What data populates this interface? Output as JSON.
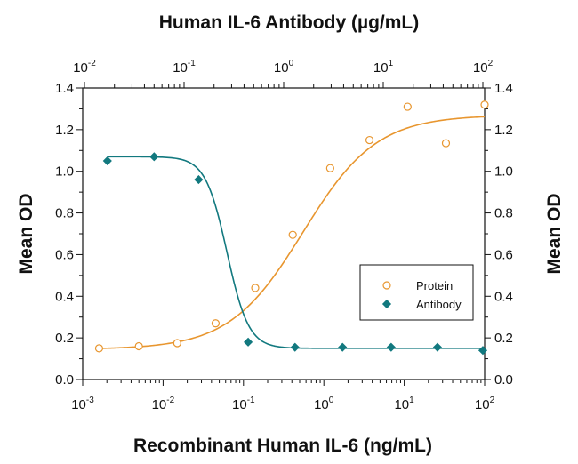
{
  "chart_data": {
    "type": "scatter",
    "title": "Human IL-6 Antibody (µg/mL)",
    "xlabel": "Recombinant Human IL-6 (ng/mL)",
    "ylabel": "Mean OD",
    "ylabel_right": "Mean OD",
    "x_scale": "log",
    "xlim": [
      0.001,
      100
    ],
    "ylim": [
      0,
      1.4
    ],
    "x_ticks": [
      {
        "value": 0.001,
        "base": "10",
        "exp": "-3"
      },
      {
        "value": 0.01,
        "base": "10",
        "exp": "-2"
      },
      {
        "value": 0.1,
        "base": "10",
        "exp": "-1"
      },
      {
        "value": 1,
        "base": "10",
        "exp": "0"
      },
      {
        "value": 10,
        "base": "10",
        "exp": "1"
      },
      {
        "value": 100,
        "base": "10",
        "exp": "2"
      }
    ],
    "top_axis": {
      "scale": "log",
      "lim": [
        0.01,
        100
      ],
      "ticks": [
        {
          "value": 0.01,
          "base": "10",
          "exp": "-2"
        },
        {
          "value": 0.1,
          "base": "10",
          "exp": "-1"
        },
        {
          "value": 1,
          "base": "10",
          "exp": "0"
        },
        {
          "value": 10,
          "base": "10",
          "exp": "1"
        },
        {
          "value": 100,
          "base": "10",
          "exp": "2"
        }
      ]
    },
    "y_ticks": [
      "0.0",
      "0.2",
      "0.4",
      "0.6",
      "0.8",
      "1.0",
      "1.2",
      "1.4"
    ],
    "grid": false,
    "legend_position": "right-middle",
    "series": [
      {
        "name": "Protein",
        "axis": "bottom",
        "marker": "open-circle",
        "color": "#e8962f",
        "points": [
          {
            "x": 0.0016,
            "y": 0.15
          },
          {
            "x": 0.005,
            "y": 0.16
          },
          {
            "x": 0.015,
            "y": 0.175
          },
          {
            "x": 0.045,
            "y": 0.27
          },
          {
            "x": 0.14,
            "y": 0.44
          },
          {
            "x": 0.41,
            "y": 0.695
          },
          {
            "x": 1.2,
            "y": 1.015
          },
          {
            "x": 3.7,
            "y": 1.15
          },
          {
            "x": 11,
            "y": 1.31
          },
          {
            "x": 33,
            "y": 1.135
          },
          {
            "x": 100,
            "y": 1.32
          }
        ],
        "fit": {
          "bottom": 0.145,
          "top": 1.27,
          "ec50": 0.55,
          "hill": 0.95
        }
      },
      {
        "name": "Antibody",
        "axis": "top",
        "marker": "filled-diamond",
        "color": "#12797f",
        "points": [
          {
            "x": 0.017,
            "y": 1.05
          },
          {
            "x": 0.05,
            "y": 1.07
          },
          {
            "x": 0.14,
            "y": 0.96
          },
          {
            "x": 0.44,
            "y": 0.18
          },
          {
            "x": 1.3,
            "y": 0.155
          },
          {
            "x": 3.9,
            "y": 0.155
          },
          {
            "x": 12,
            "y": 0.155
          },
          {
            "x": 35,
            "y": 0.155
          },
          {
            "x": 100,
            "y": 0.14
          }
        ],
        "fit": {
          "bottom": 0.15,
          "top": 1.07,
          "ic50": 0.27,
          "hill": 4.0
        }
      }
    ]
  }
}
